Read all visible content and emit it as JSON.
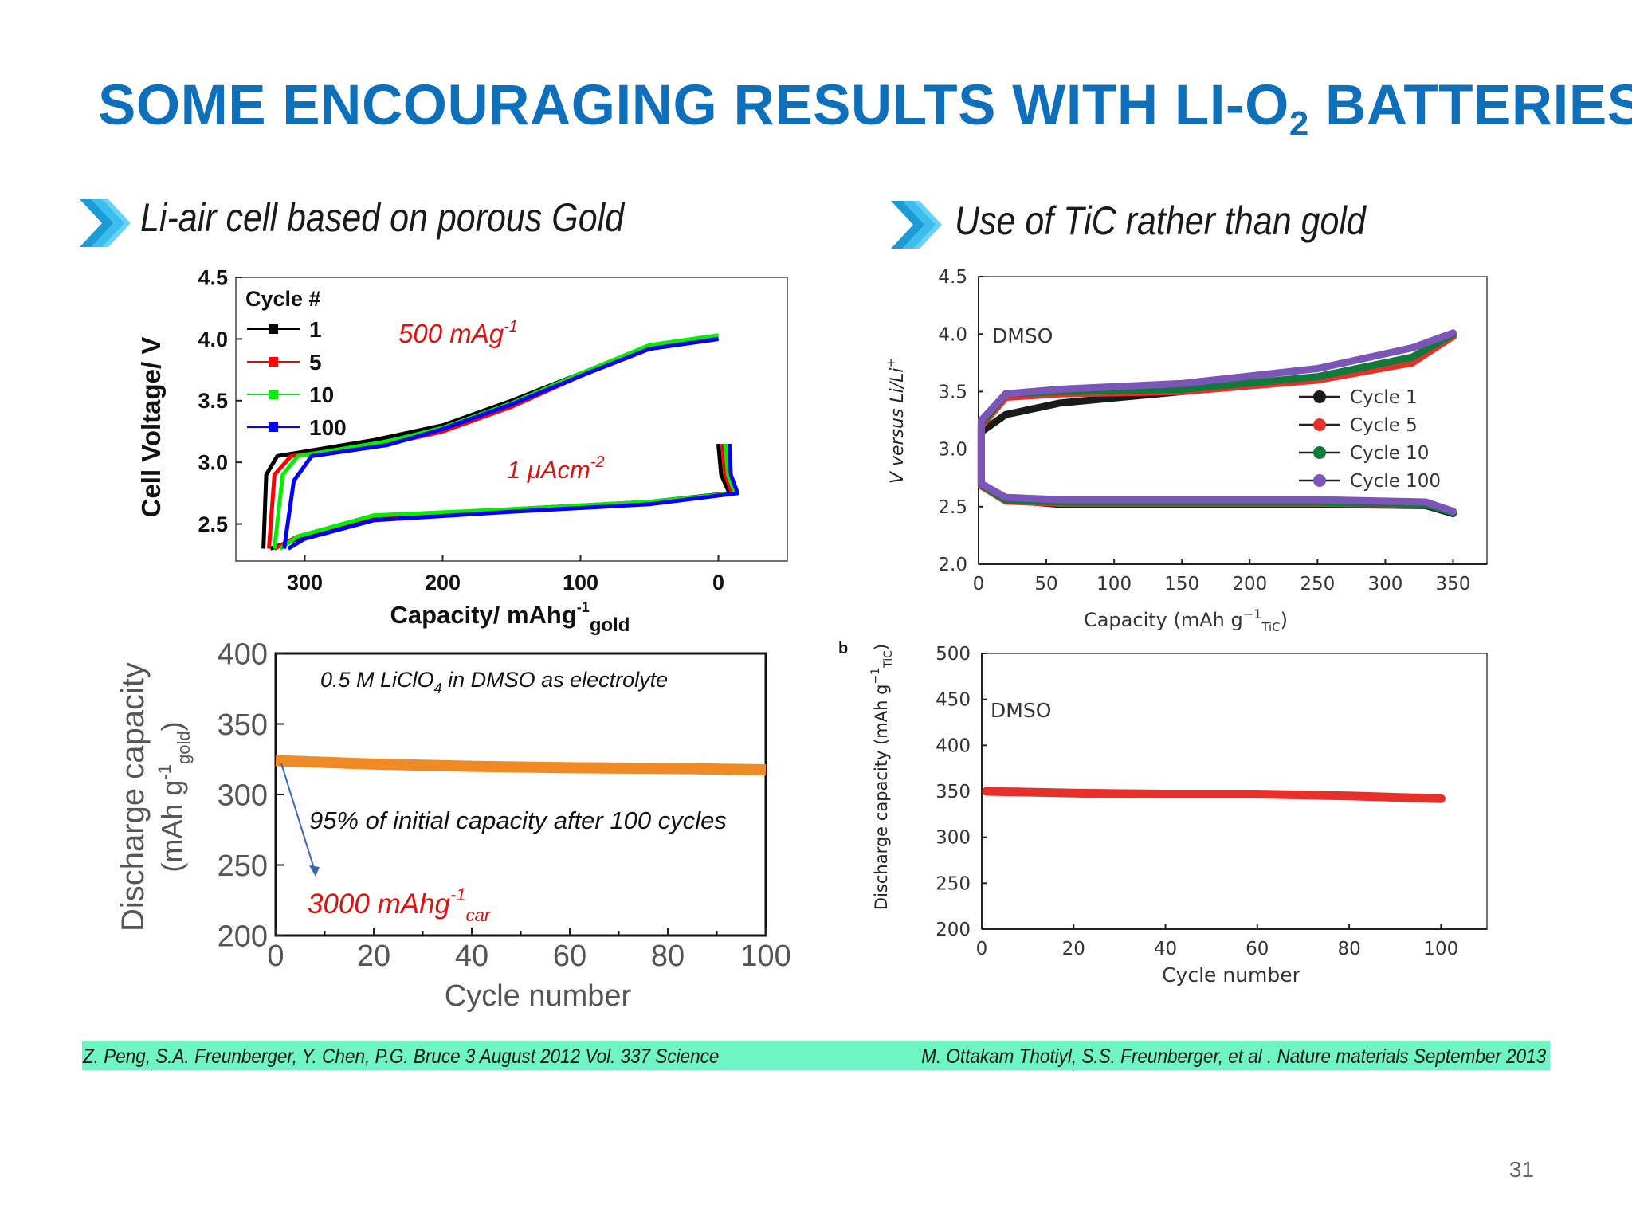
{
  "slide": {
    "title_main": "SOME ENCOURAGING RESULTS WITH LI-O",
    "title_sub": "2",
    "title_end": " BATTERIES",
    "heading_left": "Li-air cell based on porous Gold",
    "heading_right": "Use of TiC rather than gold",
    "ref_left": "Z. Peng, S.A. Freunberger, Y. Chen, P.G. Bruce 3 August 2012 Vol. 337 Science",
    "ref_right": "M. Ottakam Thotiyl, S.S. Freunberger,  et al .  Nature materials September 2013",
    "page_number": "31",
    "accent_color": "#0e6fba",
    "icon": "chevron-arrow-icon"
  },
  "chart_data": [
    {
      "id": "gold_voltage",
      "type": "line",
      "xlabel": "Capacity/ mAhg",
      "xlabel_sup": "-1",
      "xlabel_sub": "gold",
      "ylabel": "Cell Voltage/ V",
      "xlim": [
        350,
        -50
      ],
      "ylim": [
        2.2,
        4.5
      ],
      "xticks": [
        "300",
        "200",
        "100",
        "0"
      ],
      "yticks": [
        "4.5",
        "4.0",
        "3.5",
        "3.0",
        "2.5"
      ],
      "legend_title": "Cycle #",
      "legend_position": "top-left",
      "annotations": {
        "rate_value": "500 mAg",
        "rate_exp": "-1",
        "current_prefix": "1 ",
        "current_unit": "μAcm",
        "current_exp": "-2"
      },
      "series": [
        {
          "name": "1",
          "color": "#000000",
          "charge": [
            [
              330,
              2.3
            ],
            [
              328,
              2.9
            ],
            [
              320,
              3.05
            ],
            [
              250,
              3.18
            ],
            [
              200,
              3.3
            ],
            [
              150,
              3.5
            ],
            [
              100,
              3.72
            ],
            [
              50,
              3.92
            ],
            [
              0,
              4.0
            ]
          ],
          "discharge": [
            [
              0,
              3.15
            ],
            [
              -2,
              2.9
            ],
            [
              -8,
              2.75
            ],
            [
              50,
              2.68
            ],
            [
              150,
              2.62
            ],
            [
              250,
              2.56
            ],
            [
              300,
              2.4
            ],
            [
              325,
              2.3
            ]
          ]
        },
        {
          "name": "5",
          "color": "#ff0000",
          "charge": [
            [
              326,
              2.3
            ],
            [
              322,
              2.9
            ],
            [
              310,
              3.05
            ],
            [
              240,
              3.15
            ],
            [
              200,
              3.25
            ],
            [
              150,
              3.45
            ],
            [
              100,
              3.7
            ],
            [
              50,
              3.92
            ],
            [
              0,
              4.01
            ]
          ],
          "discharge": [
            [
              -3,
              3.15
            ],
            [
              -5,
              2.9
            ],
            [
              -10,
              2.75
            ],
            [
              50,
              2.67
            ],
            [
              150,
              2.6
            ],
            [
              250,
              2.55
            ],
            [
              305,
              2.4
            ],
            [
              322,
              2.3
            ]
          ]
        },
        {
          "name": "10",
          "color": "#00ee00",
          "charge": [
            [
              322,
              2.3
            ],
            [
              316,
              2.9
            ],
            [
              305,
              3.05
            ],
            [
              240,
              3.17
            ],
            [
              200,
              3.28
            ],
            [
              150,
              3.48
            ],
            [
              100,
              3.72
            ],
            [
              50,
              3.95
            ],
            [
              0,
              4.03
            ]
          ],
          "discharge": [
            [
              -5,
              3.15
            ],
            [
              -7,
              2.9
            ],
            [
              -12,
              2.75
            ],
            [
              50,
              2.68
            ],
            [
              150,
              2.62
            ],
            [
              250,
              2.57
            ],
            [
              305,
              2.4
            ],
            [
              318,
              2.3
            ]
          ]
        },
        {
          "name": "100",
          "color": "#0000ff",
          "charge": [
            [
              315,
              2.3
            ],
            [
              308,
              2.85
            ],
            [
              295,
              3.05
            ],
            [
              240,
              3.14
            ],
            [
              200,
              3.27
            ],
            [
              150,
              3.47
            ],
            [
              100,
              3.7
            ],
            [
              50,
              3.92
            ],
            [
              0,
              4.0
            ]
          ],
          "discharge": [
            [
              -8,
              3.15
            ],
            [
              -9,
              2.9
            ],
            [
              -14,
              2.75
            ],
            [
              50,
              2.66
            ],
            [
              150,
              2.6
            ],
            [
              250,
              2.53
            ],
            [
              300,
              2.38
            ],
            [
              312,
              2.3
            ]
          ]
        }
      ]
    },
    {
      "id": "tic_voltage",
      "type": "line",
      "xlabel": "Capacity (mAh g",
      "xlabel_sup": "−1",
      "xlabel_sub": "TiC",
      "xlabel_end": ")",
      "ylabel": "V versus Li/Li",
      "ylabel_sup": "+",
      "xlim": [
        0,
        375
      ],
      "ylim": [
        2.0,
        4.5
      ],
      "xticks": [
        "0",
        "50",
        "100",
        "150",
        "200",
        "250",
        "300",
        "350"
      ],
      "yticks": [
        "2.0",
        "2.5",
        "3.0",
        "3.5",
        "4.0",
        "4.5"
      ],
      "inset_label": "DMSO",
      "legend_position": "right",
      "series": [
        {
          "name": "Cycle 1",
          "color": "#1a1a1a",
          "charge": [
            [
              2,
              3.15
            ],
            [
              20,
              3.3
            ],
            [
              60,
              3.4
            ],
            [
              150,
              3.5
            ],
            [
              250,
              3.62
            ],
            [
              320,
              3.78
            ],
            [
              350,
              3.98
            ]
          ],
          "discharge": [
            [
              2,
              2.7
            ],
            [
              20,
              2.56
            ],
            [
              60,
              2.52
            ],
            [
              150,
              2.52
            ],
            [
              250,
              2.52
            ],
            [
              330,
              2.51
            ],
            [
              350,
              2.44
            ]
          ]
        },
        {
          "name": "Cycle 5",
          "color": "#e8302a",
          "charge": [
            [
              2,
              3.2
            ],
            [
              20,
              3.45
            ],
            [
              60,
              3.48
            ],
            [
              150,
              3.5
            ],
            [
              250,
              3.6
            ],
            [
              320,
              3.75
            ],
            [
              350,
              3.98
            ]
          ],
          "discharge": [
            [
              2,
              2.68
            ],
            [
              20,
              2.55
            ],
            [
              60,
              2.53
            ],
            [
              150,
              2.53
            ],
            [
              250,
              2.53
            ],
            [
              330,
              2.52
            ],
            [
              350,
              2.45
            ]
          ]
        },
        {
          "name": "Cycle 10",
          "color": "#0f7a3a",
          "charge": [
            [
              2,
              3.22
            ],
            [
              20,
              3.48
            ],
            [
              60,
              3.5
            ],
            [
              150,
              3.52
            ],
            [
              250,
              3.63
            ],
            [
              320,
              3.8
            ],
            [
              350,
              4.0
            ]
          ],
          "discharge": [
            [
              2,
              2.69
            ],
            [
              20,
              2.56
            ],
            [
              60,
              2.54
            ],
            [
              150,
              2.54
            ],
            [
              250,
              2.54
            ],
            [
              330,
              2.52
            ],
            [
              350,
              2.45
            ]
          ]
        },
        {
          "name": "Cycle 100",
          "color": "#7b55b8",
          "charge": [
            [
              2,
              3.25
            ],
            [
              20,
              3.48
            ],
            [
              60,
              3.52
            ],
            [
              150,
              3.57
            ],
            [
              250,
              3.7
            ],
            [
              320,
              3.88
            ],
            [
              350,
              4.01
            ]
          ],
          "discharge": [
            [
              2,
              2.7
            ],
            [
              20,
              2.58
            ],
            [
              60,
              2.56
            ],
            [
              150,
              2.56
            ],
            [
              250,
              2.56
            ],
            [
              330,
              2.54
            ],
            [
              350,
              2.46
            ]
          ]
        }
      ]
    },
    {
      "id": "gold_cycling",
      "type": "line",
      "xlabel": "Cycle number",
      "ylabel": "Discharge capacity",
      "ylabel2": "(mAh g",
      "ylabel2_sub": "gold",
      "ylabel2_sup": "-1",
      "ylabel2_end": ")",
      "xlim": [
        0,
        100
      ],
      "ylim": [
        200,
        400
      ],
      "xticks": [
        "0",
        "20",
        "40",
        "60",
        "80",
        "100"
      ],
      "yticks": [
        "400",
        "350",
        "300",
        "250",
        "200"
      ],
      "annotations": {
        "electrolyte_pre": "0.5 M LiClO",
        "electrolyte_sub": "4",
        "electrolyte_post": " in DMSO as electrolyte",
        "retention": "95% of initial capacity after 100 cycles",
        "carbon_value": "3000 mAhg",
        "carbon_sup": "-1",
        "carbon_sub": "car"
      },
      "series": [
        {
          "name": "",
          "color": "#f08a24",
          "points": [
            [
              0,
              324
            ],
            [
              20,
              321.5
            ],
            [
              40,
              320
            ],
            [
              60,
              319
            ],
            [
              80,
              318.5
            ],
            [
              100,
              317.5
            ]
          ]
        }
      ]
    },
    {
      "id": "tic_cycling",
      "type": "line",
      "panel_label": "b",
      "xlabel": "Cycle number",
      "ylabel": "Discharge capacity (mAh g",
      "ylabel_sup": "−1",
      "ylabel_sub": "TiC",
      "ylabel_end": ")",
      "xlim": [
        0,
        110
      ],
      "ylim": [
        200,
        500
      ],
      "xticks": [
        "0",
        "20",
        "40",
        "60",
        "80",
        "100"
      ],
      "yticks": [
        "200",
        "250",
        "300",
        "350",
        "400",
        "450",
        "500"
      ],
      "inset_label": "DMSO",
      "series": [
        {
          "name": "",
          "color": "#e8302a",
          "points": [
            [
              1,
              350
            ],
            [
              20,
              348
            ],
            [
              40,
              347
            ],
            [
              60,
              347
            ],
            [
              80,
              345
            ],
            [
              100,
              342
            ]
          ]
        }
      ]
    }
  ]
}
